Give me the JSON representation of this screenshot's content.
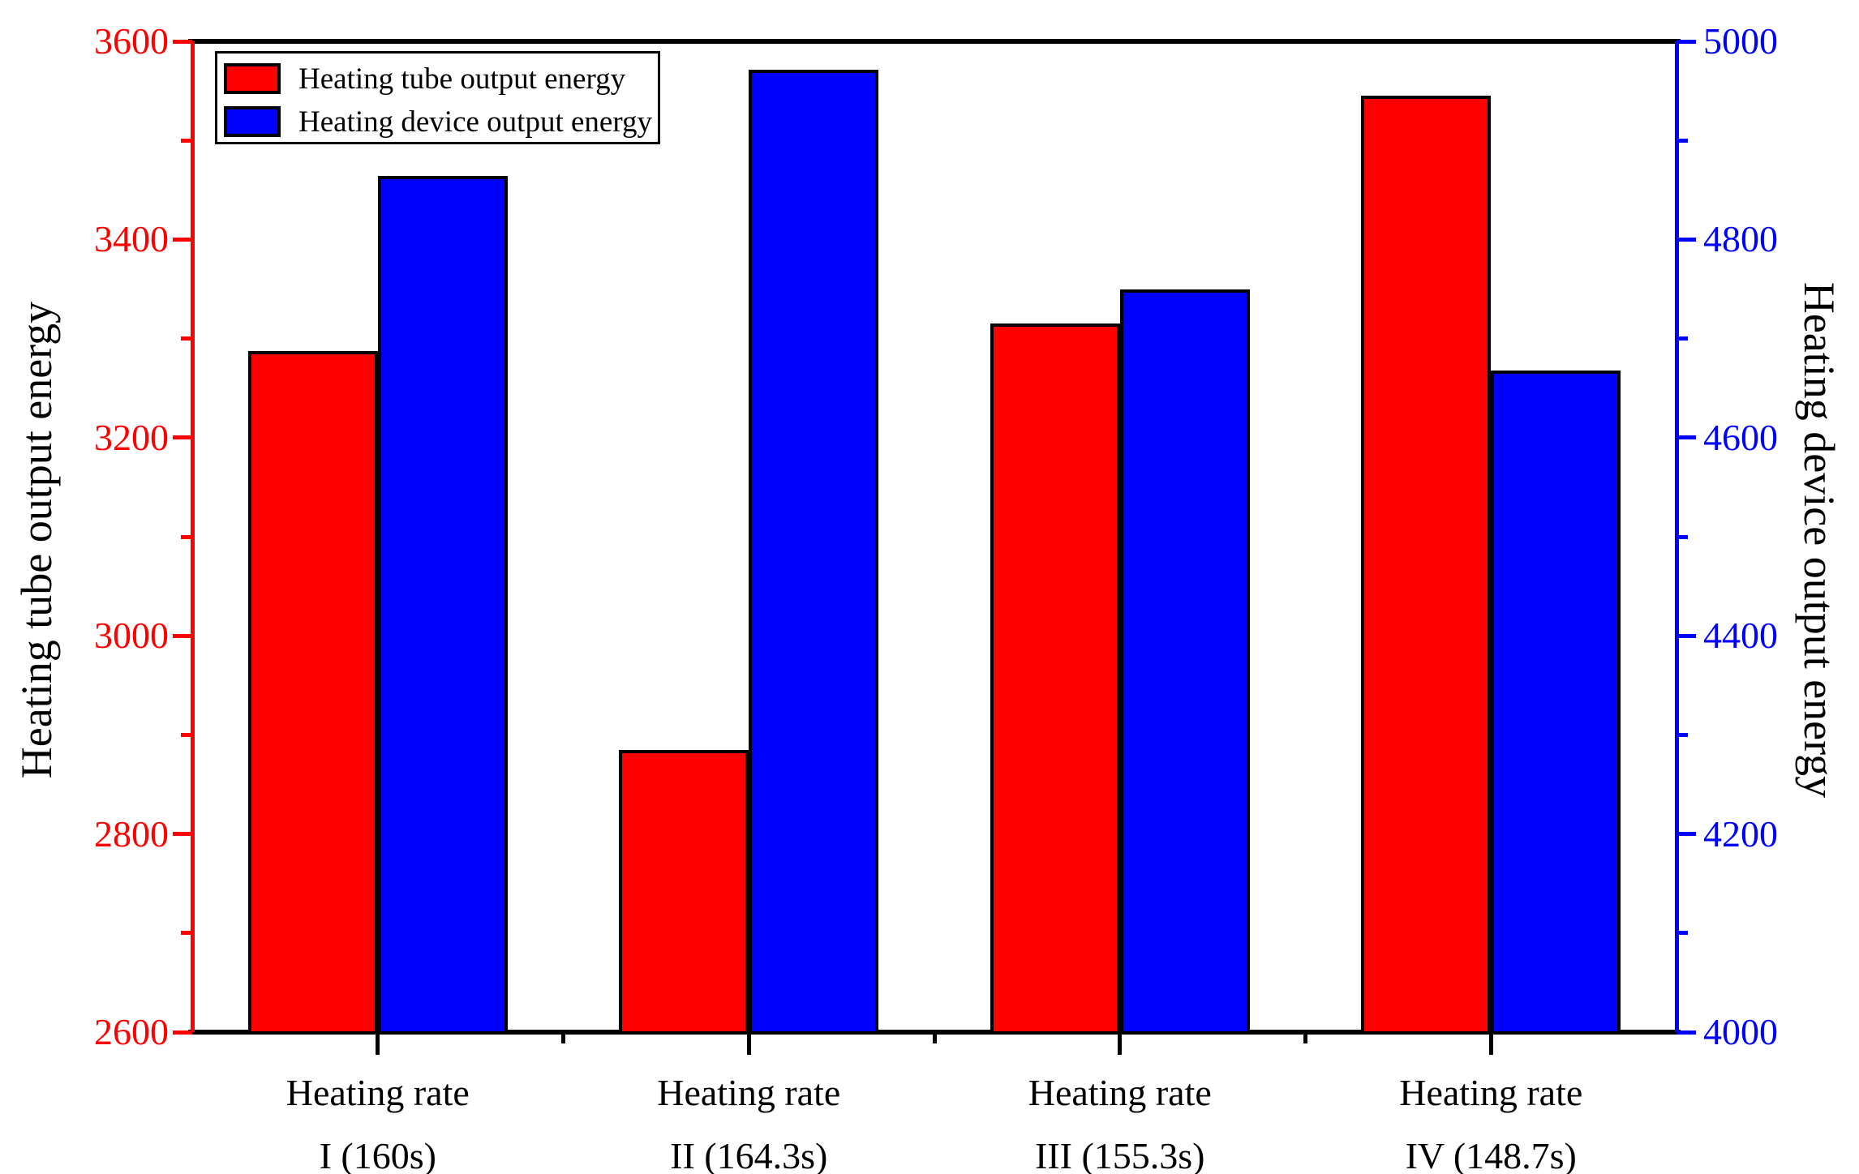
{
  "chart_data": {
    "type": "bar",
    "title": "",
    "grid": false,
    "legend_position": "top-left",
    "categories": [
      {
        "line1": "Heating rate",
        "line2": "I (160s)"
      },
      {
        "line1": "Heating rate",
        "line2": "II (164.3s)"
      },
      {
        "line1": "Heating rate",
        "line2": "III (155.3s)"
      },
      {
        "line1": "Heating rate",
        "line2": "IV (148.7s)"
      }
    ],
    "series": [
      {
        "name": "Heating tube output energy",
        "axis": "left",
        "color": "#ff0000",
        "values": [
          3287,
          2885,
          3315,
          3545
        ]
      },
      {
        "name": "Heating device output energy",
        "axis": "right",
        "color": "#0000ff",
        "values": [
          4864,
          4971,
          4750,
          4668
        ]
      }
    ],
    "left_axis": {
      "label": "Heating tube output energy",
      "color": "#ff0000",
      "min": 2600,
      "max": 3600,
      "major_ticks": [
        3600,
        3400,
        3200,
        3000,
        2800,
        2600
      ],
      "minor_ticks": [
        3500,
        3300,
        3100,
        2900,
        2700
      ]
    },
    "right_axis": {
      "label": "Heating device output energy",
      "color": "#0000ff",
      "min": 4000,
      "max": 5000,
      "major_ticks": [
        5000,
        4800,
        4600,
        4400,
        4200,
        4000
      ],
      "minor_ticks": [
        4900,
        4700,
        4500,
        4300,
        4100
      ]
    },
    "frame_color": "#000000"
  }
}
